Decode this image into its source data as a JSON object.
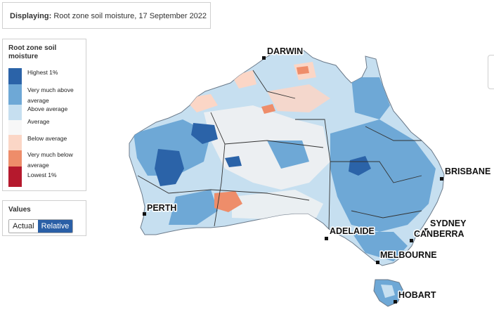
{
  "header": {
    "prefix": "Displaying:",
    "text": "Root zone soil moisture, 17 September 2022"
  },
  "legend": {
    "title": "Root zone soil moisture",
    "items": [
      {
        "label": "Highest 1%",
        "color": "#2b63a8"
      },
      {
        "label": "Very much above average",
        "color": "#6ea8d6"
      },
      {
        "label": "Above average",
        "color": "#c6dff0"
      },
      {
        "label": "Average",
        "color": "#f7f7f7"
      },
      {
        "label": "Below average",
        "color": "#fbd6c6"
      },
      {
        "label": "Very much below average",
        "color": "#ee8d6a"
      },
      {
        "label": "Lowest 1%",
        "color": "#b5192d"
      }
    ]
  },
  "values": {
    "title": "Values",
    "actual": "Actual",
    "relative": "Relative",
    "selected": "Relative"
  },
  "cities": [
    {
      "name": "DARWIN"
    },
    {
      "name": "BRISBANE"
    },
    {
      "name": "PERTH"
    },
    {
      "name": "ADELAIDE"
    },
    {
      "name": "SYDNEY"
    },
    {
      "name": "CANBERRA"
    },
    {
      "name": "MELBOURNE"
    },
    {
      "name": "HOBART"
    }
  ]
}
